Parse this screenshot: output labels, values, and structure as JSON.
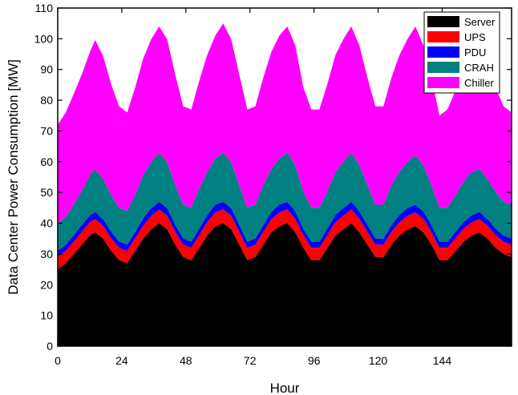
{
  "chart_data": {
    "type": "area",
    "stacked": true,
    "xlabel": "Hour",
    "ylabel": "Data Center Power Consumption [MW]",
    "xlim": [
      0,
      170
    ],
    "ylim": [
      0,
      110
    ],
    "xticks": [
      0,
      24,
      48,
      72,
      96,
      120,
      144
    ],
    "yticks": [
      0,
      10,
      20,
      30,
      40,
      50,
      60,
      70,
      80,
      90,
      100,
      110
    ],
    "legend_position": "top-right",
    "x": [
      0,
      3,
      6,
      9,
      12,
      14,
      17,
      20,
      23,
      26,
      29,
      32,
      35,
      38,
      41,
      44,
      47,
      50,
      53,
      56,
      59,
      62,
      65,
      68,
      71,
      74,
      77,
      80,
      83,
      86,
      89,
      92,
      95,
      98,
      101,
      104,
      107,
      110,
      113,
      116,
      119,
      122,
      125,
      128,
      131,
      134,
      137,
      140,
      143,
      146,
      149,
      152,
      155,
      158,
      161,
      164,
      167,
      170
    ],
    "series": [
      {
        "name": "Server",
        "color": "#000000",
        "values": [
          25,
          27,
          30,
          33,
          36,
          37,
          35,
          31,
          28,
          27,
          31,
          35,
          38,
          40,
          38,
          33,
          29,
          28,
          32,
          36,
          39,
          40,
          38,
          33,
          28,
          29,
          33,
          37,
          39,
          40,
          37,
          32,
          28,
          28,
          32,
          36,
          38,
          40,
          37,
          33,
          29,
          29,
          33,
          36,
          38,
          39,
          37,
          33,
          28,
          28,
          31,
          34,
          36,
          37,
          35,
          32,
          30,
          29
        ]
      },
      {
        "name": "UPS",
        "color": "#ff0000",
        "values": [
          4.0,
          4.0,
          4.0,
          4.2,
          4.3,
          4.3,
          4.2,
          4.1,
          4.0,
          4.0,
          4.1,
          4.2,
          4.4,
          4.5,
          4.4,
          4.2,
          4.0,
          4.0,
          4.1,
          4.3,
          4.5,
          4.5,
          4.4,
          4.2,
          4.0,
          4.0,
          4.2,
          4.3,
          4.5,
          4.5,
          4.4,
          4.1,
          4.0,
          4.0,
          4.1,
          4.3,
          4.4,
          4.5,
          4.4,
          4.2,
          4.0,
          4.0,
          4.2,
          4.3,
          4.4,
          4.5,
          4.4,
          4.1,
          4.0,
          4.0,
          4.1,
          4.2,
          4.3,
          4.3,
          4.2,
          4.1,
          4.0,
          4.0
        ]
      },
      {
        "name": "PDU",
        "color": "#0000ff",
        "values": [
          2.0,
          2.0,
          2.1,
          2.2,
          2.3,
          2.3,
          2.2,
          2.1,
          2.0,
          2.0,
          2.1,
          2.3,
          2.4,
          2.5,
          2.4,
          2.2,
          2.0,
          2.0,
          2.2,
          2.4,
          2.5,
          2.5,
          2.4,
          2.2,
          2.0,
          2.0,
          2.2,
          2.4,
          2.5,
          2.5,
          2.4,
          2.1,
          2.0,
          2.0,
          2.2,
          2.4,
          2.5,
          2.5,
          2.4,
          2.2,
          2.0,
          2.0,
          2.2,
          2.4,
          2.5,
          2.5,
          2.4,
          2.2,
          2.0,
          2.0,
          2.1,
          2.2,
          2.3,
          2.3,
          2.2,
          2.1,
          2.0,
          2.0
        ]
      },
      {
        "name": "CRAH",
        "color": "#008080",
        "values": [
          9,
          9,
          10,
          11,
          13,
          14,
          13,
          12,
          11,
          11,
          12,
          14,
          15,
          16,
          15,
          13,
          11,
          11,
          13,
          14,
          15,
          16,
          15,
          13,
          11,
          11,
          13,
          14,
          15,
          16,
          15,
          12,
          11,
          11,
          12,
          14,
          15,
          16,
          15,
          13,
          11,
          11,
          13,
          14,
          15,
          16,
          15,
          13,
          11,
          11,
          12,
          13,
          14,
          14,
          13,
          12,
          11,
          11
        ]
      },
      {
        "name": "Chiller",
        "color": "#ff00ff",
        "values": [
          32,
          34,
          36,
          38,
          40,
          42,
          40,
          36,
          33,
          32,
          35,
          38,
          40,
          41,
          40,
          36,
          32,
          32,
          35,
          38,
          40,
          42,
          40,
          36,
          32,
          32,
          35,
          38,
          40,
          41,
          39,
          34,
          32,
          32,
          35,
          38,
          40,
          41,
          39,
          35,
          32,
          32,
          35,
          38,
          40,
          42,
          39,
          35,
          30,
          32,
          34,
          36,
          38,
          39,
          37,
          34,
          31,
          30
        ]
      }
    ]
  }
}
